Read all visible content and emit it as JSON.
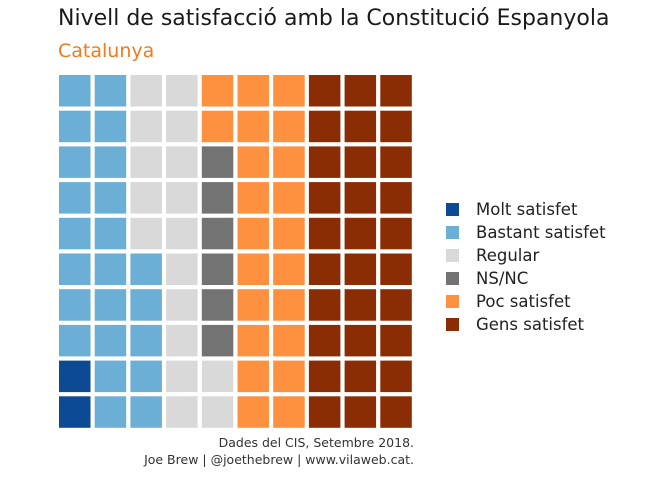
{
  "title": "Nivell de satisfacció amb la Constitució Espanyola",
  "subtitle": "Catalunya",
  "caption": {
    "line1": "Dades del CIS, Setembre 2018.",
    "line2": "Joe Brew | @joethebrew | www.vilaweb.cat."
  },
  "chart_data": {
    "type": "waffle",
    "title": "Nivell de satisfacció amb la Constitució Espanyola",
    "subtitle": "Catalunya",
    "total_squares": 100,
    "grid": {
      "columns": 10,
      "rows": 10,
      "fill_order": "column-wise, bottom to top"
    },
    "legend_placement": "right",
    "categories": [
      {
        "name": "Molt satisfet",
        "count": 2,
        "color": "#0d4a94"
      },
      {
        "name": "Bastant satisfet",
        "count": 23,
        "color": "#6baed6"
      },
      {
        "name": "Regular",
        "count": 17,
        "color": "#d9d9d9"
      },
      {
        "name": "NS/NC",
        "count": 6,
        "color": "#737373"
      },
      {
        "name": "Poc satisfet",
        "count": 22,
        "color": "#fd9140"
      },
      {
        "name": "Gens satisfet",
        "count": 30,
        "color": "#8b2d04"
      }
    ]
  }
}
